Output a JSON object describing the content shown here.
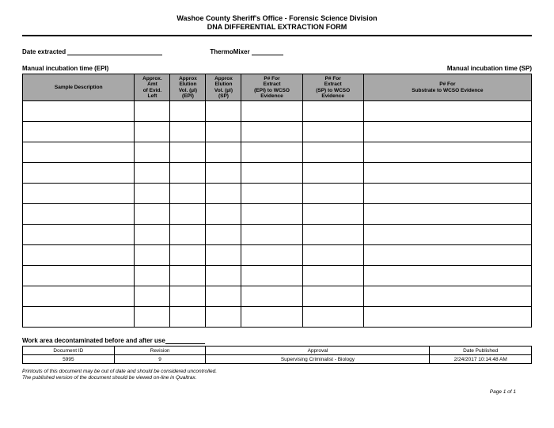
{
  "header": {
    "org": "Washoe County Sheriff's Office - Forensic Science Division",
    "form": "DNA DIFFERENTIAL EXTRACTION FORM"
  },
  "fields": {
    "date_extracted": "Date extracted",
    "thermomixer": "ThermoMixer",
    "manual_epi": "Manual incubation time (EPI)",
    "manual_sp": "Manual incubation time (SP)"
  },
  "table": {
    "columns": [
      "Sample Description",
      "Approx.\nAmt\nof Evid.\nLeft",
      "Approx\nElution\nVol. (µl)\n(EPI)",
      "Approx\nElution\nVol. (µl)\n(SP)",
      "P#  For\nExtract\n(EPI) to WCSO\nEvidence",
      "P#  For\nExtract\n(SP) to WCSO\nEvidence",
      "P#  For\nSubstrate to WCSO Evidence"
    ],
    "col_widths": [
      "22%",
      "7%",
      "7%",
      "7%",
      "12%",
      "12%",
      "33%"
    ],
    "num_rows": 11
  },
  "decon": "Work area decontaminated before and after use",
  "footer": {
    "headers": [
      "Document ID",
      "Revision",
      "Approval",
      "Date Published"
    ],
    "values": [
      "5995",
      "9",
      "Supervising Criminalist - Biology",
      "2/24/2017 10:14:48 AM"
    ],
    "col_widths": [
      "18%",
      "18%",
      "44%",
      "20%"
    ]
  },
  "disclaimer": {
    "line1": "Printouts of this document may be out of date and should be considered uncontrolled.",
    "line2": "The published version of the document should be viewed on-line in Qualtrax."
  },
  "page_label": "Page 1 of 1"
}
